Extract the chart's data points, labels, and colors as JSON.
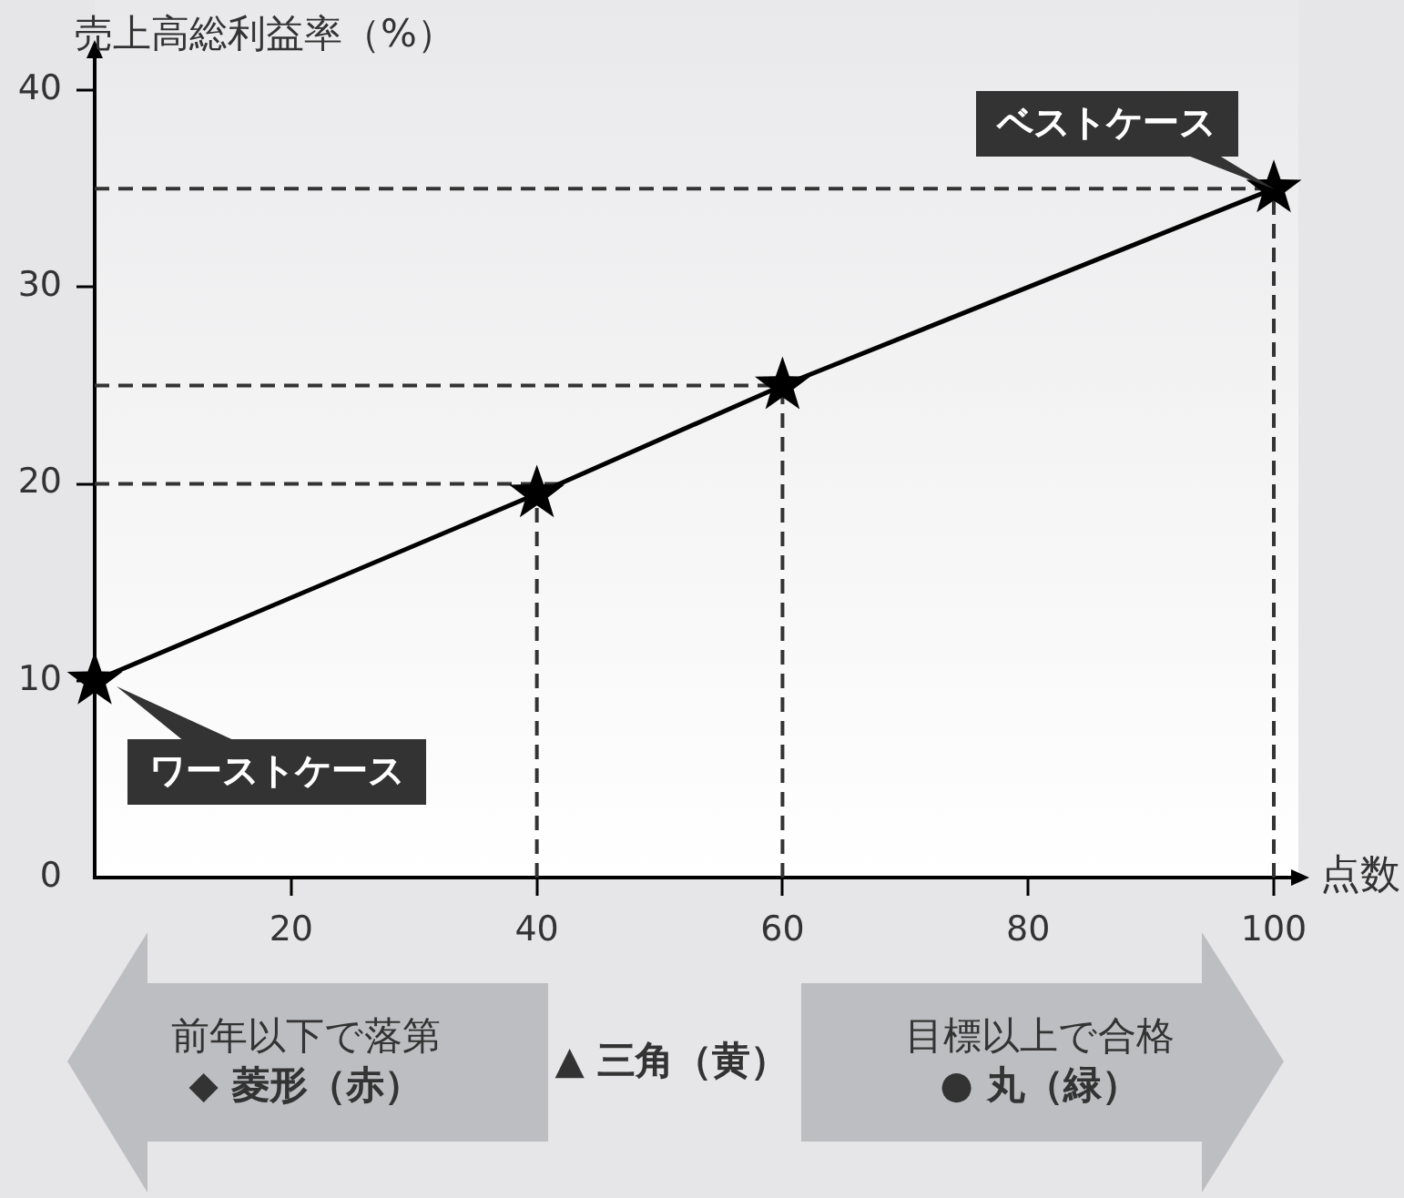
{
  "chart_data": {
    "type": "line",
    "xlabel": "点数",
    "ylabel": "売上高総利益率（%）",
    "x": [
      4,
      40,
      60,
      100
    ],
    "values": [
      10,
      19.5,
      25,
      35
    ],
    "color": "#000000",
    "marker": "star",
    "line_style": "solid",
    "xlim": [
      4,
      102
    ],
    "ylim": [
      0,
      42
    ],
    "xticks": [
      20,
      40,
      60,
      80,
      100
    ],
    "yticks": [
      0,
      10,
      20,
      30,
      40
    ],
    "ref_lines": [
      {
        "axis": "y",
        "value": 35,
        "color": "#333333",
        "line_style": "dashed"
      },
      {
        "axis": "y",
        "value": 25,
        "color": "#333333",
        "line_style": "dashed"
      },
      {
        "axis": "y",
        "value": 20,
        "color": "#333333",
        "line_style": "dashed"
      },
      {
        "axis": "x",
        "value": 40,
        "color": "#333333",
        "line_style": "dashed"
      },
      {
        "axis": "x",
        "value": 60,
        "color": "#333333",
        "line_style": "dashed"
      },
      {
        "axis": "x",
        "value": 100,
        "color": "#333333",
        "line_style": "dashed"
      }
    ],
    "annotations": [
      {
        "text": "ワーストケース",
        "x": 4,
        "y": 10
      },
      {
        "text": "ベストケース",
        "x": 100,
        "y": 35
      },
      "前年以下で落第\n◆ 菱形（赤）",
      "▲ 三角（黄）",
      "目標以上で合格\n● 丸（緑）"
    ]
  }
}
